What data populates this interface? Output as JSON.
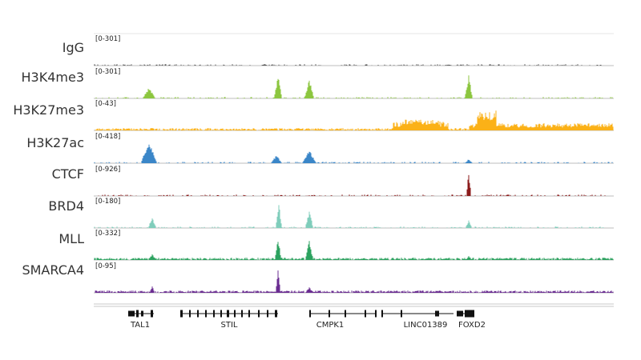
{
  "tracks": [
    {
      "id": "igg",
      "label": "IgG",
      "range": "[0-301]",
      "color": "#555555"
    },
    {
      "id": "h3k4me3",
      "label": "H3K4me3",
      "range": "[0-301]",
      "color": "#8cc63f"
    },
    {
      "id": "h3k27me3",
      "label": "H3K27me3",
      "range": "[0-43]",
      "color": "#fbb117"
    },
    {
      "id": "h3k27ac",
      "label": "H3K27ac",
      "range": "[0-418]",
      "color": "#3a86c8"
    },
    {
      "id": "ctcf",
      "label": "CTCF",
      "range": "[0-926]",
      "color": "#8b1a1a"
    },
    {
      "id": "brd4",
      "label": "BRD4",
      "range": "[0-180]",
      "color": "#7fcdbb"
    },
    {
      "id": "mll",
      "label": "MLL",
      "range": "[0-332]",
      "color": "#2ca25f"
    },
    {
      "id": "smarca4",
      "label": "SMARCA4",
      "range": "[0-95]",
      "color": "#6a2c91"
    }
  ],
  "genes": [
    {
      "name": "TAL1"
    },
    {
      "name": "STIL"
    },
    {
      "name": "CMPK1"
    },
    {
      "name": "LINC01389"
    },
    {
      "name": "FOXD2"
    }
  ]
}
